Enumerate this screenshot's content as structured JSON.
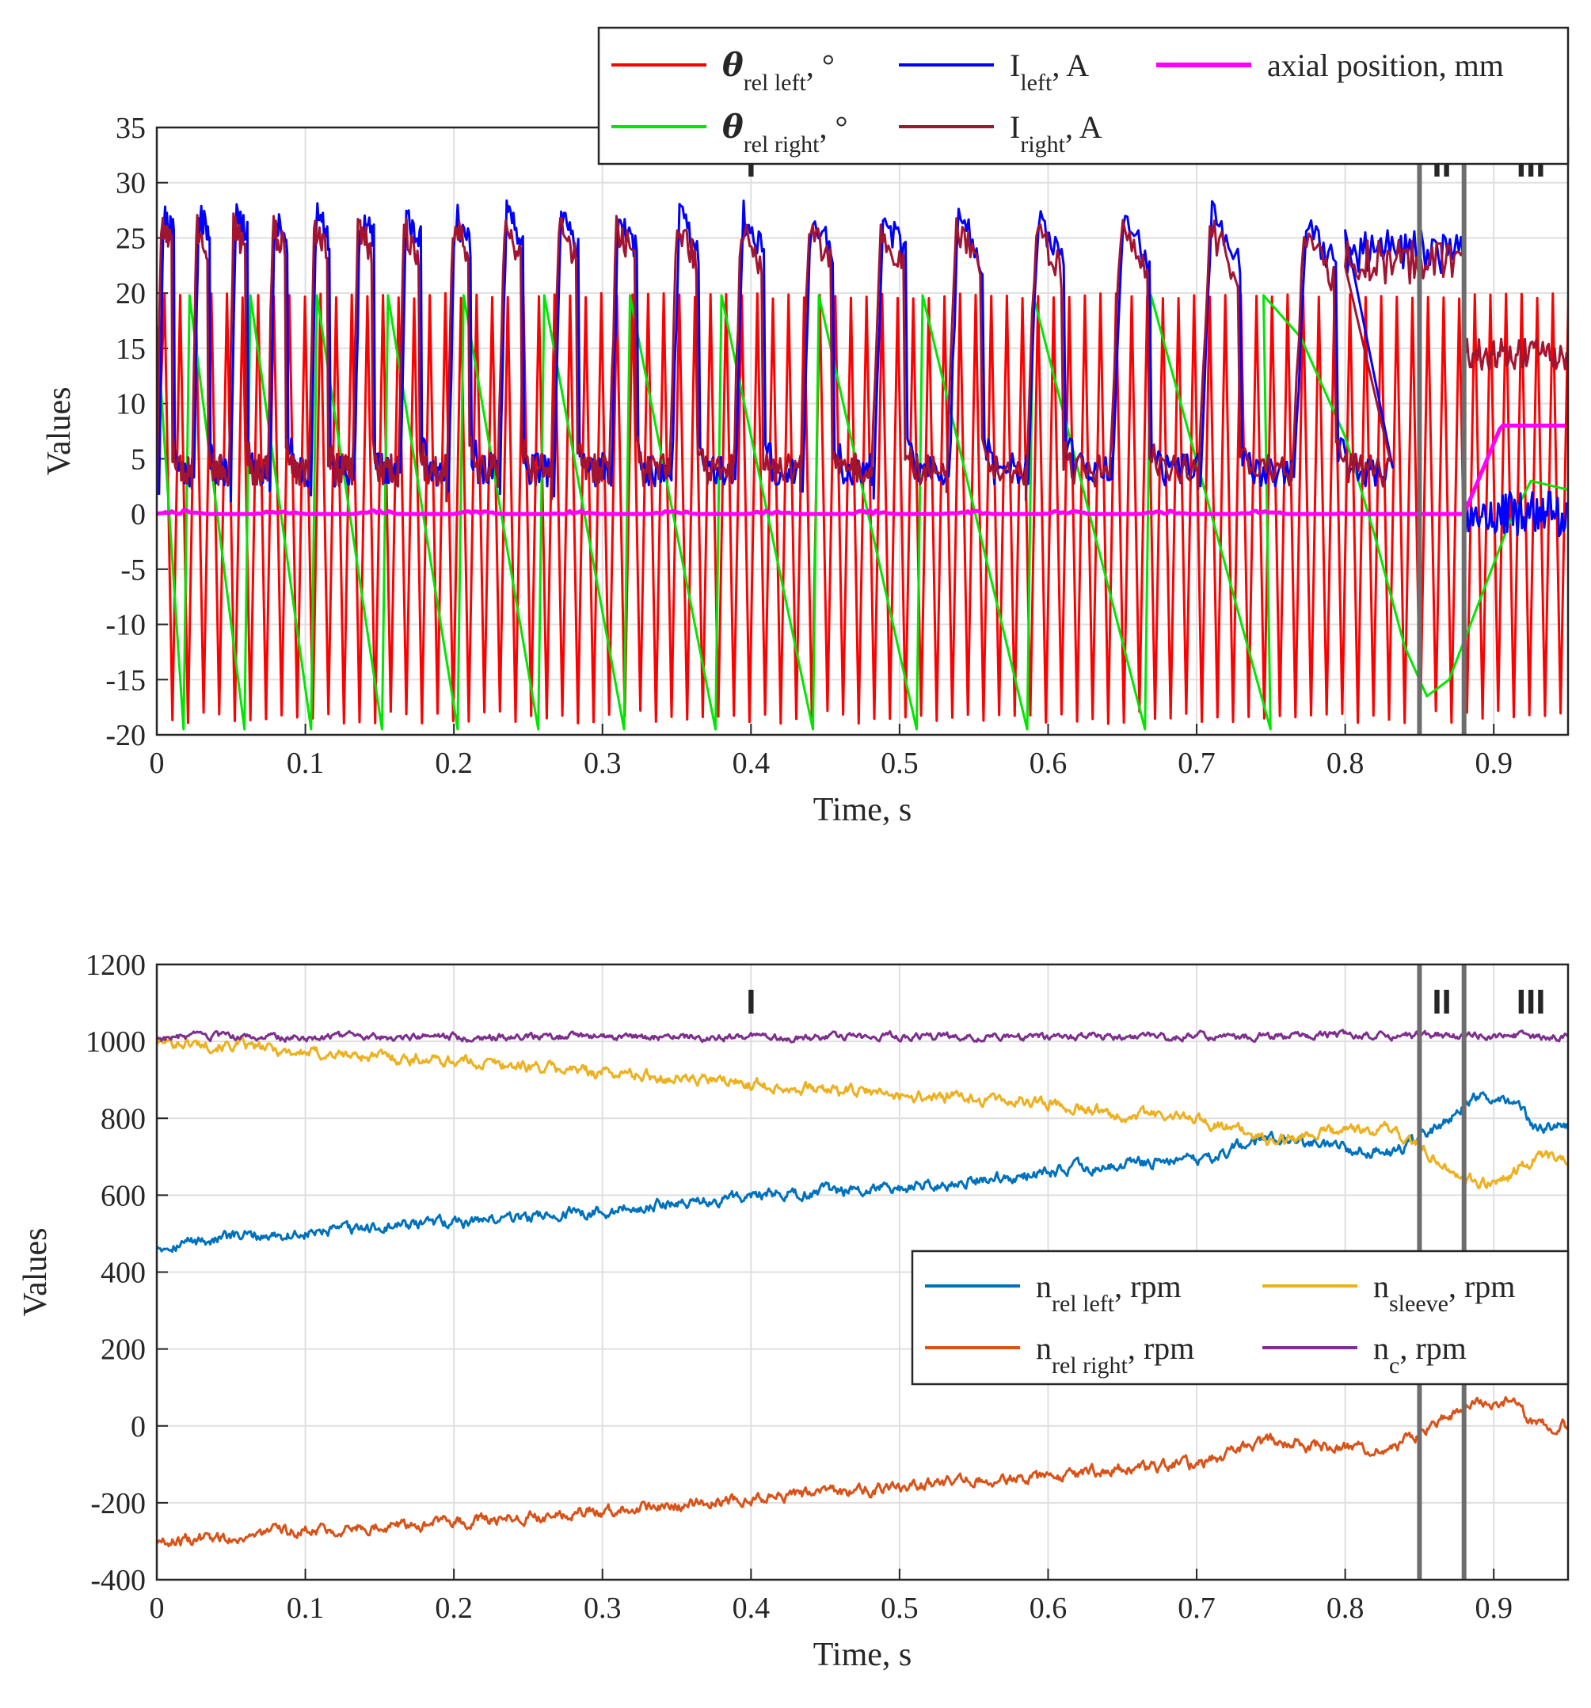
{
  "chart_data": [
    {
      "type": "line",
      "xlabel": "Time, s",
      "ylabel": "Values",
      "xlim": [
        0,
        0.95
      ],
      "ylim": [
        -20,
        35
      ],
      "xticks": [
        "0",
        "0.1",
        "0.2",
        "0.3",
        "0.4",
        "0.5",
        "0.6",
        "0.7",
        "0.8",
        "0.9"
      ],
      "yticks": [
        "-20",
        "-15",
        "-10",
        "-5",
        "0",
        "5",
        "10",
        "15",
        "20",
        "25",
        "30",
        "35"
      ],
      "grid": true,
      "legend_position": "top-right",
      "phase_markers": [
        0.85,
        0.88
      ],
      "phase_labels": [
        {
          "text": "I",
          "x": 0.4
        },
        {
          "text": "II",
          "x": 0.865
        },
        {
          "text": "III",
          "x": 0.925
        }
      ],
      "series": [
        {
          "name": "θ_rel left, °",
          "legend": {
            "main": "θ",
            "sub": "rel left",
            "tail": ", °"
          },
          "color": "#ff0000",
          "range": [
            -19,
            20
          ],
          "period_start": 0.0105,
          "period_end": 0.0105
        },
        {
          "name": "θ_rel right, °",
          "legend": {
            "main": "θ",
            "sub": "rel right",
            "tail": ", °"
          },
          "color": "#00e600",
          "range": [
            -19.5,
            19.8
          ],
          "period_start": 0.041,
          "period_end": 0.09,
          "phase3_end": 2.2
        },
        {
          "name": "I_left, A",
          "legend": {
            "main": "I",
            "sub": "left",
            "tail": ", A"
          },
          "color": "#0000ff",
          "peak": 27,
          "base": 2.5,
          "phase2_level": 23,
          "phase3_level": 0
        },
        {
          "name": "I_right, A",
          "legend": {
            "main": "I",
            "sub": "right",
            "tail": ", A"
          },
          "color": "#a2142f",
          "peak": 26,
          "base": 2.5,
          "phase2_level": 22,
          "phase3_level": 14.5
        },
        {
          "name": "axial position, mm",
          "legend": {
            "main": "axial position, mm",
            "sub": "",
            "tail": ""
          },
          "color": "#ff00ff",
          "x": [
            0,
            0.88,
            0.905,
            0.95
          ],
          "values": [
            0,
            0,
            8,
            8
          ]
        }
      ]
    },
    {
      "type": "line",
      "xlabel": "Time, s",
      "ylabel": "Values",
      "xlim": [
        0,
        0.95
      ],
      "ylim": [
        -400,
        1200
      ],
      "xticks": [
        "0",
        "0.1",
        "0.2",
        "0.3",
        "0.4",
        "0.5",
        "0.6",
        "0.7",
        "0.8",
        "0.9"
      ],
      "yticks": [
        "-400",
        "-200",
        "0",
        "200",
        "400",
        "600",
        "800",
        "1000",
        "1200"
      ],
      "grid": true,
      "legend_position": "center-right",
      "phase_markers": [
        0.85,
        0.88
      ],
      "phase_labels": [
        {
          "text": "I",
          "x": 0.4
        },
        {
          "text": "II",
          "x": 0.865
        },
        {
          "text": "III",
          "x": 0.925
        }
      ],
      "series": [
        {
          "name": "n_rel left, rpm",
          "legend": {
            "main": "n",
            "sub": "rel left",
            "tail": ", rpm"
          },
          "color": "#0072bd",
          "x": [
            0,
            0.05,
            0.1,
            0.2,
            0.3,
            0.4,
            0.5,
            0.55,
            0.6,
            0.65,
            0.7,
            0.75,
            0.8,
            0.83,
            0.85,
            0.87,
            0.89,
            0.91,
            0.93,
            0.95
          ],
          "values": [
            470,
            490,
            500,
            530,
            560,
            600,
            620,
            640,
            660,
            680,
            690,
            750,
            720,
            710,
            740,
            800,
            860,
            850,
            770,
            780
          ]
        },
        {
          "name": "n_sleeve, rpm",
          "legend": {
            "main": "n",
            "sub": "sleeve",
            "tail": ", rpm"
          },
          "color": "#edb120",
          "x": [
            0,
            0.05,
            0.1,
            0.2,
            0.3,
            0.4,
            0.5,
            0.6,
            0.65,
            0.7,
            0.75,
            0.8,
            0.83,
            0.85,
            0.87,
            0.89,
            0.91,
            0.93,
            0.95
          ],
          "values": [
            1000,
            990,
            970,
            950,
            920,
            890,
            860,
            840,
            810,
            800,
            740,
            770,
            770,
            730,
            670,
            630,
            650,
            700,
            700
          ]
        },
        {
          "name": "n_rel right, rpm",
          "legend": {
            "main": "n",
            "sub": "rel right",
            "tail": ", rpm"
          },
          "color": "#d95319",
          "x": [
            0,
            0.05,
            0.1,
            0.2,
            0.3,
            0.4,
            0.5,
            0.55,
            0.6,
            0.65,
            0.7,
            0.75,
            0.8,
            0.83,
            0.85,
            0.87,
            0.89,
            0.91,
            0.93,
            0.95
          ],
          "values": [
            -300,
            -290,
            -270,
            -250,
            -220,
            -190,
            -160,
            -140,
            -140,
            -110,
            -100,
            -40,
            -60,
            -60,
            -20,
            30,
            70,
            60,
            0,
            0
          ]
        },
        {
          "name": "n_c, rpm",
          "legend": {
            "main": "n",
            "sub": "c",
            "tail": ", rpm"
          },
          "color": "#7e2f8e",
          "x": [
            0,
            0.2,
            0.4,
            0.6,
            0.8,
            0.9,
            0.95
          ],
          "values": [
            1010,
            1012,
            1010,
            1012,
            1014,
            1016,
            1010
          ]
        }
      ]
    }
  ]
}
